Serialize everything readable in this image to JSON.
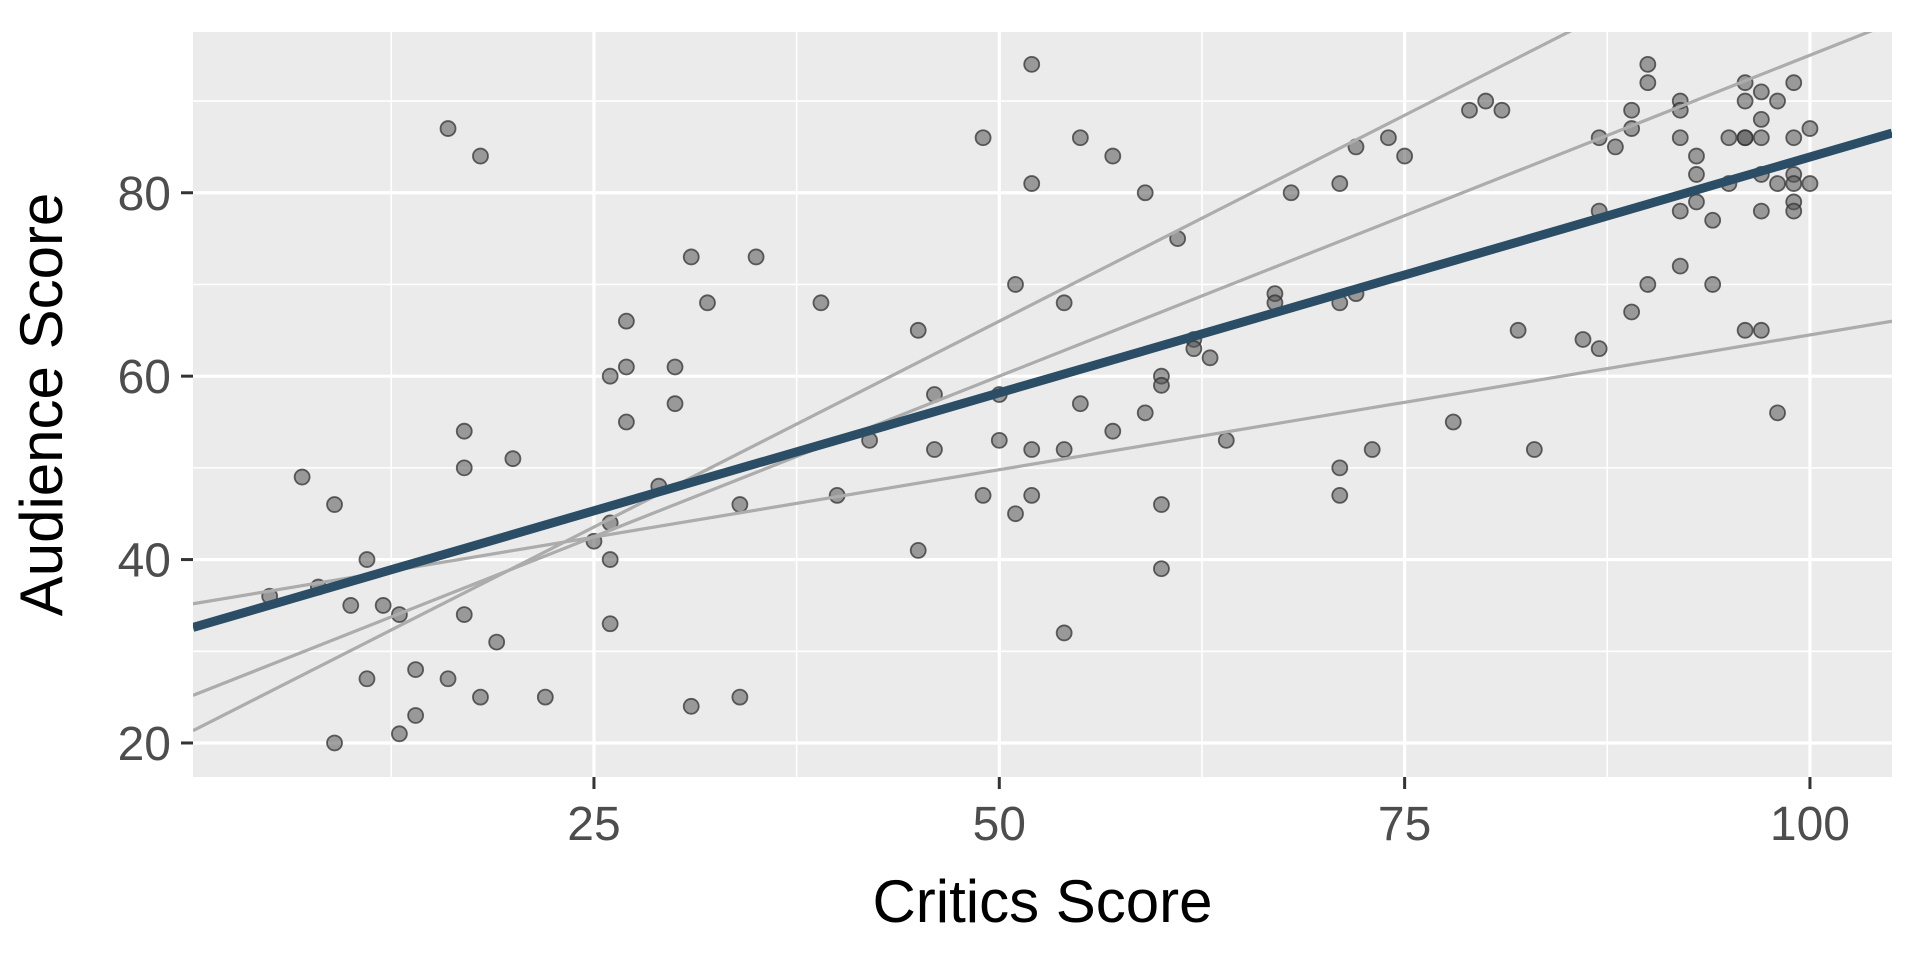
{
  "chart_data": {
    "type": "scatter",
    "title": "",
    "xlabel": "Critics Score",
    "ylabel": "Audience Score",
    "x_domain": [
      0.27,
      105.06
    ],
    "y_domain": [
      16.29,
      97.53
    ],
    "x_ticks": [
      25,
      50,
      75,
      100
    ],
    "y_ticks": [
      20,
      40,
      60,
      80
    ],
    "x_minor_gridlines": [
      12.5,
      37.5,
      62.5,
      87.5
    ],
    "y_minor_gridlines": [
      30,
      50,
      70,
      90
    ],
    "grid": true,
    "legend_position": "none",
    "points": [
      [
        5,
        36
      ],
      [
        7,
        49
      ],
      [
        8,
        37
      ],
      [
        9,
        46
      ],
      [
        9,
        20
      ],
      [
        10,
        35
      ],
      [
        11,
        40
      ],
      [
        11,
        27
      ],
      [
        12,
        35
      ],
      [
        13,
        34
      ],
      [
        13,
        21
      ],
      [
        14,
        28
      ],
      [
        14,
        23
      ],
      [
        16,
        27
      ],
      [
        16,
        87
      ],
      [
        17,
        54
      ],
      [
        17,
        50
      ],
      [
        17,
        34
      ],
      [
        18,
        84
      ],
      [
        18,
        25
      ],
      [
        19,
        31
      ],
      [
        20,
        51
      ],
      [
        22,
        25
      ],
      [
        25,
        42
      ],
      [
        26,
        60
      ],
      [
        26,
        44
      ],
      [
        26,
        40
      ],
      [
        26,
        33
      ],
      [
        27,
        66
      ],
      [
        27,
        61
      ],
      [
        27,
        55
      ],
      [
        29,
        48
      ],
      [
        30,
        61
      ],
      [
        30,
        57
      ],
      [
        31,
        73
      ],
      [
        31,
        24
      ],
      [
        32,
        68
      ],
      [
        34,
        46
      ],
      [
        34,
        25
      ],
      [
        35,
        73
      ],
      [
        39,
        68
      ],
      [
        40,
        47
      ],
      [
        42,
        53
      ],
      [
        45,
        65
      ],
      [
        45,
        41
      ],
      [
        46,
        58
      ],
      [
        46,
        52
      ],
      [
        49,
        86
      ],
      [
        49,
        47
      ],
      [
        50,
        58
      ],
      [
        50,
        53
      ],
      [
        51,
        70
      ],
      [
        51,
        45
      ],
      [
        52,
        94
      ],
      [
        52,
        81
      ],
      [
        52,
        52
      ],
      [
        52,
        47
      ],
      [
        54,
        68
      ],
      [
        54,
        52
      ],
      [
        54,
        32
      ],
      [
        55,
        86
      ],
      [
        55,
        57
      ],
      [
        57,
        84
      ],
      [
        57,
        54
      ],
      [
        59,
        80
      ],
      [
        59,
        56
      ],
      [
        60,
        60
      ],
      [
        60,
        59
      ],
      [
        60,
        46
      ],
      [
        60,
        39
      ],
      [
        61,
        75
      ],
      [
        62,
        64
      ],
      [
        62,
        63
      ],
      [
        63,
        62
      ],
      [
        64,
        53
      ],
      [
        67,
        69
      ],
      [
        67,
        68
      ],
      [
        68,
        80
      ],
      [
        71,
        81
      ],
      [
        71,
        68
      ],
      [
        71,
        50
      ],
      [
        71,
        47
      ],
      [
        72,
        85
      ],
      [
        72,
        69
      ],
      [
        73,
        52
      ],
      [
        74,
        86
      ],
      [
        75,
        84
      ],
      [
        78,
        55
      ],
      [
        79,
        89
      ],
      [
        80,
        90
      ],
      [
        81,
        89
      ],
      [
        82,
        65
      ],
      [
        83,
        52
      ],
      [
        86,
        64
      ],
      [
        87,
        86
      ],
      [
        87,
        78
      ],
      [
        87,
        63
      ],
      [
        88,
        85
      ],
      [
        89,
        89
      ],
      [
        89,
        87
      ],
      [
        89,
        67
      ],
      [
        90,
        94
      ],
      [
        90,
        92
      ],
      [
        90,
        70
      ],
      [
        92,
        90
      ],
      [
        92,
        89
      ],
      [
        92,
        86
      ],
      [
        92,
        78
      ],
      [
        92,
        72
      ],
      [
        93,
        84
      ],
      [
        93,
        82
      ],
      [
        93,
        79
      ],
      [
        94,
        77
      ],
      [
        94,
        70
      ],
      [
        95,
        86
      ],
      [
        95,
        81
      ],
      [
        96,
        92
      ],
      [
        96,
        90
      ],
      [
        96,
        86
      ],
      [
        96,
        86
      ],
      [
        96,
        65
      ],
      [
        97,
        91
      ],
      [
        97,
        88
      ],
      [
        97,
        86
      ],
      [
        97,
        82
      ],
      [
        97,
        78
      ],
      [
        97,
        65
      ],
      [
        98,
        90
      ],
      [
        98,
        81
      ],
      [
        98,
        56
      ],
      [
        99,
        92
      ],
      [
        99,
        86
      ],
      [
        99,
        82
      ],
      [
        99,
        81
      ],
      [
        99,
        79
      ],
      [
        99,
        78
      ],
      [
        100,
        87
      ],
      [
        100,
        81
      ]
    ],
    "fit_line": {
      "name": "regression-line",
      "intercept": 32.46,
      "slope": 0.5144
    },
    "sample_lines": [
      {
        "name": "sample-line-1",
        "intercept": 35.1,
        "slope": 0.294
      },
      {
        "name": "sample-line-2",
        "intercept": 25.0,
        "slope": 0.7
      },
      {
        "name": "sample-line-3",
        "intercept": 21.1,
        "slope": 0.898
      }
    ]
  },
  "style": {
    "panel_bg": "#EBEBEB",
    "grid_color": "#FFFFFF",
    "major_grid_width": 3.2,
    "minor_grid_width": 1.6,
    "point_fill": "#555555",
    "point_fill_opacity": 0.55,
    "point_stroke": "#333333",
    "point_stroke_opacity": 0.75,
    "point_radius": 7.5,
    "point_stroke_width": 1.8,
    "fit_color": "#2B4D66",
    "fit_width": 9,
    "sample_color": "#ACACAC",
    "sample_width": 3.2,
    "tick_color": "#333333",
    "tick_length": 12,
    "tick_width": 3,
    "tick_label_color": "#4D4D4D",
    "tick_font_size": 48,
    "axis_title_color": "#000000",
    "axis_title_font_size": 60
  }
}
